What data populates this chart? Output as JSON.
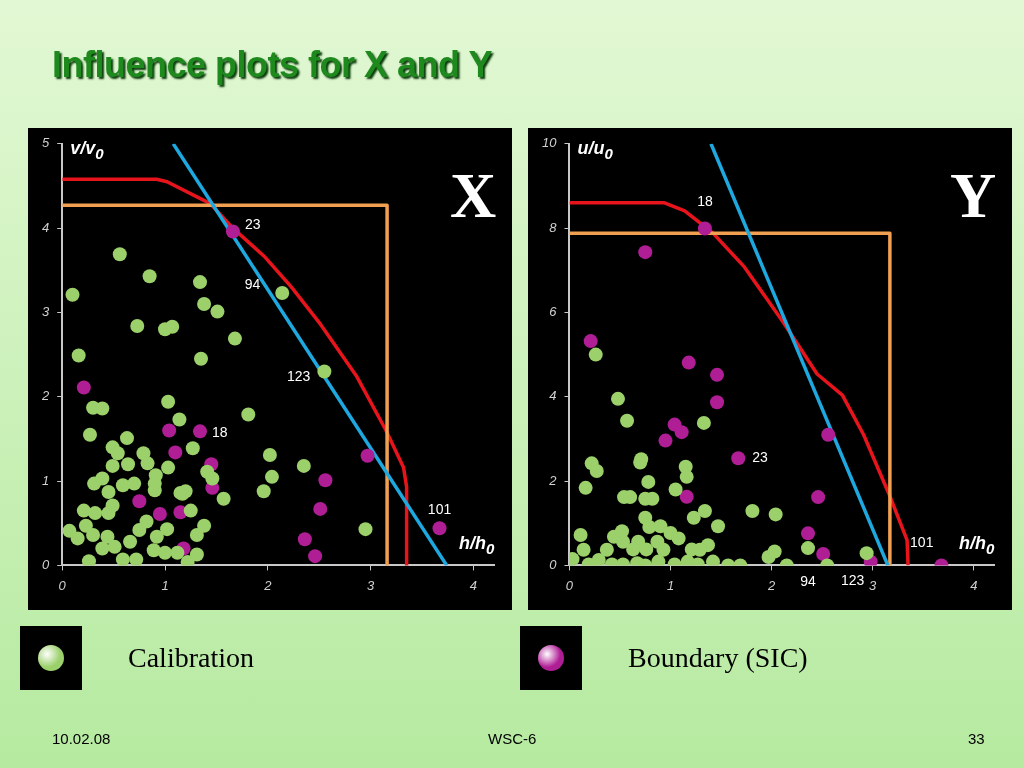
{
  "chart_data": [
    {
      "type": "scatter",
      "title": "Influence plots for X and Y",
      "ylabel": "v/v$_{0}$",
      "xlabel": "h/h$_{0}$",
      "xlim": [
        0,
        4.2
      ],
      "xticks": [
        0,
        1,
        2,
        3,
        4
      ],
      "ylim": [
        0,
        5
      ],
      "yticks": [
        0,
        1,
        2,
        3,
        4,
        5
      ],
      "legend": "bottom",
      "annotations": [
        "X",
        "10.02.08",
        "WSC-6",
        "33",
        {
          "text": "23",
          "x": 1.66,
          "y": 3.96
        },
        {
          "text": "94",
          "x": 2.14,
          "y": 3.23
        },
        {
          "text": "123",
          "x": 2.55,
          "y": 2.3
        },
        {
          "text": "18",
          "x": 1.34,
          "y": 1.59
        },
        {
          "text": "101",
          "x": 3.67,
          "y": 0.44
        }
      ],
      "series": [
        {
          "name": "Calibration",
          "marker": "circle",
          "color": "#9bd06a",
          "x": [
            0.56,
            0.85,
            0.1,
            1.34,
            1.38,
            1.51,
            2.14,
            0.73,
            1.0,
            1.07,
            1.68,
            0.16,
            1.35,
            2.55,
            0.3,
            0.39,
            1.03,
            1.14,
            0.27,
            1.81,
            1.27,
            1.41,
            1.46,
            1.57,
            2.02,
            2.04,
            1.96,
            2.35,
            2.95,
            0.63,
            0.49,
            0.54,
            0.64,
            0.49,
            0.79,
            0.83,
            1.03,
            0.91,
            0.9,
            0.9,
            1.17,
            1.2,
            0.31,
            0.39,
            0.59,
            0.7,
            0.45,
            0.21,
            0.32,
            0.49,
            0.45,
            0.07,
            0.15,
            0.23,
            0.3,
            0.44,
            0.39,
            0.51,
            0.66,
            0.75,
            0.82,
            0.92,
            1.02,
            0.89,
            0.72,
            0.59,
            0.26,
            1.0,
            1.12,
            1.22,
            1.31,
            1.31,
            1.38,
            1.25,
            1.15
          ],
          "values": [
            3.69,
            3.43,
            3.21,
            3.36,
            3.1,
            3.01,
            3.23,
            2.84,
            2.8,
            2.83,
            2.69,
            2.49,
            2.45,
            2.3,
            1.87,
            1.86,
            1.94,
            1.73,
            1.55,
            1.79,
            1.39,
            1.11,
            1.03,
            0.79,
            1.31,
            1.05,
            0.88,
            1.18,
            0.43,
            1.51,
            1.4,
            1.33,
            1.2,
            1.18,
            1.33,
            1.21,
            1.16,
            1.07,
            0.97,
            0.89,
            0.85,
            0.88,
            0.97,
            1.03,
            0.95,
            0.97,
            0.87,
            0.65,
            0.62,
            0.71,
            0.62,
            0.41,
            0.32,
            0.47,
            0.36,
            0.34,
            0.2,
            0.22,
            0.28,
            0.42,
            0.52,
            0.34,
            0.43,
            0.18,
            0.07,
            0.07,
            0.05,
            0.15,
            0.15,
            0.04,
            0.13,
            0.36,
            0.47,
            0.65,
            0.86
          ]
        },
        {
          "name": "Boundary (SIC)",
          "marker": "circle",
          "color": "#b01e96",
          "x": [
            1.66,
            0.21,
            1.04,
            1.34,
            1.1,
            1.45,
            1.46,
            2.56,
            2.51,
            2.36,
            2.46,
            2.97,
            3.67,
            0.75,
            0.95,
            1.15,
            1.18
          ],
          "values": [
            3.96,
            2.11,
            1.6,
            1.59,
            1.34,
            1.2,
            0.92,
            1.01,
            0.67,
            0.31,
            0.11,
            1.3,
            0.44,
            0.76,
            0.61,
            0.63,
            0.2
          ]
        },
        {
          "type": "line",
          "marker": "none",
          "color": "#1ea8e0",
          "x": [
            1.08,
            3.74
          ],
          "values": [
            5,
            0
          ]
        },
        {
          "type": "line",
          "marker": "none",
          "color": "#f0a050",
          "x": [
            0,
            3.16,
            3.16
          ],
          "values": [
            4.27,
            4.27,
            0
          ]
        },
        {
          "type": "line",
          "marker": "none",
          "color": "#e8141c",
          "x": [
            0,
            0.92,
            1.02,
            1.44,
            1.66,
            1.97,
            2.23,
            2.5,
            2.86,
            3.15,
            3.32,
            3.35,
            3.35
          ],
          "values": [
            4.58,
            4.58,
            4.55,
            4.29,
            4.0,
            3.66,
            3.3,
            2.88,
            2.25,
            1.6,
            1.16,
            0.93,
            0
          ]
        }
      ]
    },
    {
      "type": "scatter",
      "ylabel": "u/u$_{0}$",
      "xlabel": "h/h$_{0}$",
      "xlim": [
        0,
        4.2
      ],
      "xticks": [
        0,
        1,
        2,
        3,
        4
      ],
      "ylim": [
        0,
        10
      ],
      "yticks": [
        0,
        2,
        4,
        6,
        8,
        10
      ],
      "annotations": [
        "Y",
        {
          "text": "18",
          "x": 1.34,
          "y": 7.99
        },
        {
          "text": "23",
          "x": 1.67,
          "y": 2.54
        },
        {
          "text": "94",
          "x": 2.36,
          "y": 0.41
        },
        {
          "text": "123",
          "x": 2.94,
          "y": 0.29
        },
        {
          "text": "101",
          "x": 3.68,
          "y": 0
        }
      ],
      "series": [
        {
          "marker": "circle",
          "color": "#9bd06a",
          "x": [
            0.26,
            0.48,
            0.57,
            1.33,
            0.22,
            0.27,
            0.71,
            0.7,
            1.15,
            1.16,
            0.78,
            0.16,
            1.05,
            0.54,
            0.6,
            0.75,
            0.82,
            0.75,
            0.79,
            0.9,
            1.0,
            1.23,
            1.34,
            1.47,
            1.81,
            2.04,
            0.11,
            0.44,
            0.52,
            0.53,
            0.68,
            0.87,
            1.08,
            1.37,
            0.14,
            0.37,
            0.63,
            0.76,
            0.93,
            1.21,
            1.29,
            0.03,
            0.19,
            0.29,
            0.42,
            0.53,
            0.67,
            0.75,
            0.88,
            1.04,
            1.17,
            1.27,
            1.42,
            1.57,
            1.69,
            1.97,
            2.03,
            2.15,
            2.36,
            2.55,
            2.94
          ],
          "values": [
            5.0,
            3.95,
            3.43,
            3.38,
            2.42,
            2.24,
            2.52,
            2.44,
            2.34,
            2.1,
            1.98,
            1.84,
            1.8,
            1.62,
            1.62,
            1.58,
            1.58,
            1.13,
            0.91,
            0.93,
            0.77,
            1.13,
            1.29,
            0.93,
            1.29,
            1.21,
            0.72,
            0.68,
            0.81,
            0.56,
            0.56,
            0.56,
            0.64,
            0.48,
            0.37,
            0.37,
            0.38,
            0.38,
            0.37,
            0.38,
            0.37,
            0.15,
            0.02,
            0.13,
            0.02,
            0.02,
            0.05,
            0,
            0.09,
            0.02,
            0.09,
            0.02,
            0.09,
            0,
            0,
            0.2,
            0.33,
            0,
            0.41,
            0,
            0.29
          ]
        },
        {
          "marker": "circle",
          "color": "#b01e96",
          "x": [
            1.34,
            0.75,
            0.21,
            1.18,
            1.46,
            1.46,
            1.04,
            1.11,
            0.95,
            1.67,
            2.56,
            1.16,
            2.46,
            2.36,
            2.51,
            2.98,
            3.68
          ],
          "values": [
            7.99,
            7.43,
            5.32,
            4.81,
            4.52,
            3.87,
            3.34,
            3.16,
            2.96,
            2.54,
            3.1,
            1.63,
            1.62,
            0.76,
            0.27,
            0.09,
            0
          ]
        },
        {
          "type": "line",
          "marker": "none",
          "color": "#1ea8e0",
          "x": [
            1.4,
            3.15
          ],
          "values": [
            10,
            0
          ]
        },
        {
          "type": "line",
          "marker": "none",
          "color": "#f0a050",
          "x": [
            0,
            3.17,
            3.17
          ],
          "values": [
            7.88,
            7.88,
            0
          ]
        },
        {
          "type": "line",
          "marker": "none",
          "color": "#e8141c",
          "x": [
            0,
            0.94,
            1.14,
            1.42,
            1.73,
            2.12,
            2.45,
            2.7,
            2.91,
            3.16,
            3.34,
            3.35
          ],
          "values": [
            8.6,
            8.6,
            8.41,
            7.88,
            7.08,
            5.75,
            4.54,
            4.04,
            3.1,
            1.7,
            0.6,
            0
          ]
        }
      ]
    }
  ]
}
